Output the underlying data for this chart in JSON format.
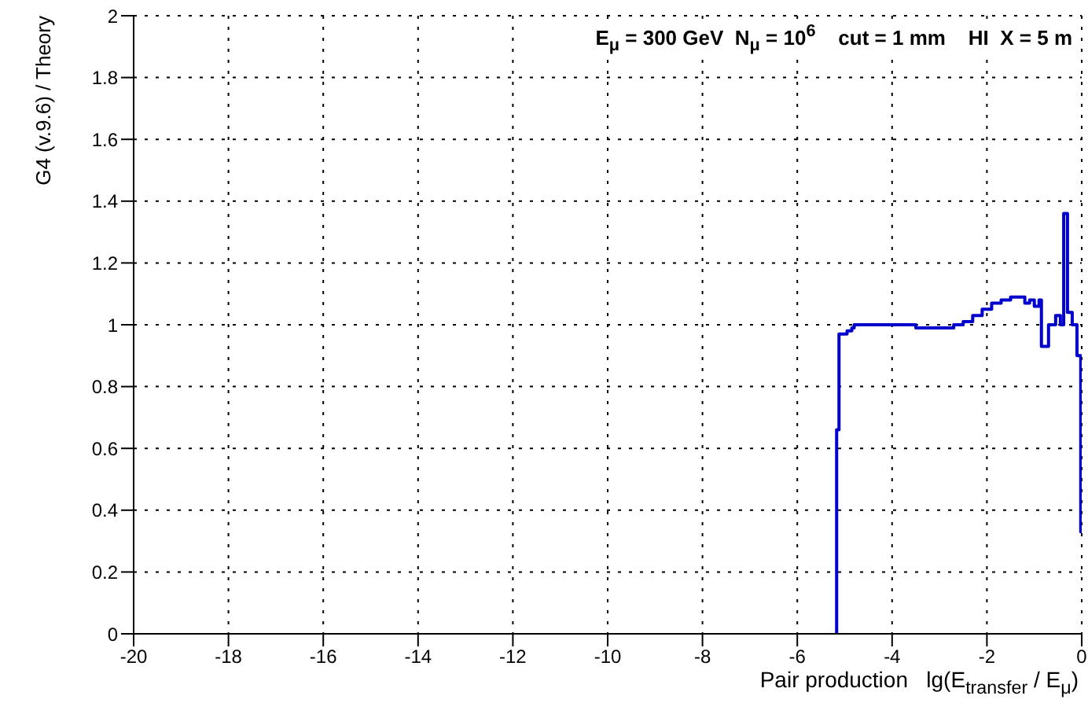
{
  "chart_data": {
    "type": "step",
    "title": "E$_{μ}$ = 300 GeV  N$_{μ}$ = 10$^{6}$    cut = 1 mm    HI  X = 5 m",
    "xlabel": "Pair production   lg(E$_{transfer}$ / E$_{μ}$)",
    "ylabel": "G4 (v.9.6) / Theory",
    "x": [
      -5.2,
      -5.17,
      -5.12,
      -4.95,
      -4.85,
      -4.8,
      -3.55,
      -3.5,
      -2.9,
      -2.7,
      -2.5,
      -2.3,
      -2.1,
      -1.9,
      -1.7,
      -1.5,
      -1.3,
      -1.2,
      -1.1,
      -1.0,
      -0.9,
      -0.85,
      -0.7,
      -0.55,
      -0.45,
      -0.38,
      -0.3,
      -0.2,
      -0.1,
      -0.02,
      0
    ],
    "series": [
      {
        "color": "#0000cc",
        "values": [
          0,
          0.66,
          0.97,
          0.98,
          0.99,
          1.0,
          1.0,
          0.99,
          0.99,
          1.0,
          1.01,
          1.03,
          1.05,
          1.07,
          1.08,
          1.09,
          1.09,
          1.07,
          1.08,
          1.06,
          1.08,
          0.93,
          1.0,
          1.03,
          1.0,
          1.36,
          1.04,
          1.0,
          0.9,
          0.33,
          0.33
        ]
      }
    ],
    "xlim": [
      -20,
      0
    ],
    "xticks": [
      -20,
      -18,
      -16,
      -14,
      -12,
      -10,
      -8,
      -6,
      -4,
      -2,
      0
    ],
    "ylim": [
      0,
      2
    ],
    "yticks": [
      0,
      0.2,
      0.4,
      0.6,
      0.8,
      1,
      1.2,
      1.4,
      1.6,
      1.8,
      2
    ],
    "grid": true,
    "legend": false,
    "marker": "none",
    "line_style": "solid"
  }
}
